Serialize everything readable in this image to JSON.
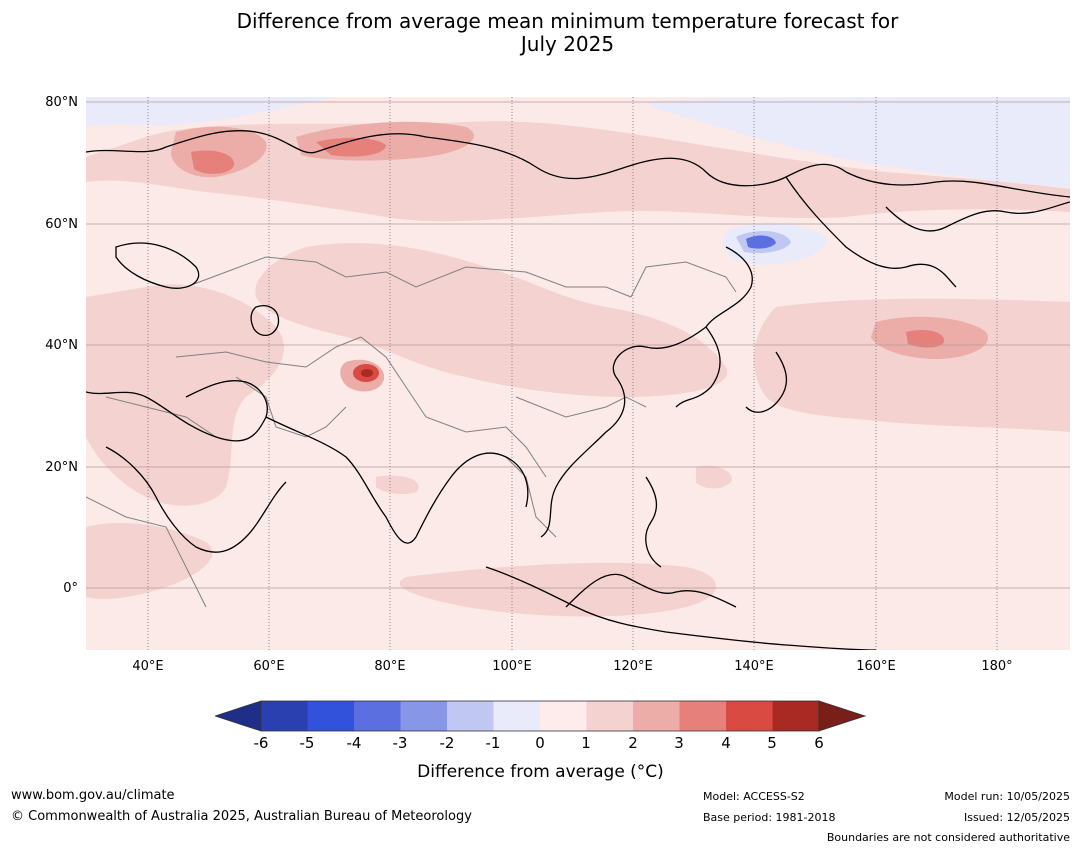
{
  "title": {
    "line1": "Difference from average mean minimum temperature forecast for",
    "line2": "July 2025"
  },
  "map": {
    "lat_labels": [
      "80°N",
      "60°N",
      "40°N",
      "20°N",
      "0°"
    ],
    "lon_labels": [
      "40°E",
      "60°E",
      "80°E",
      "100°E",
      "120°E",
      "140°E",
      "160°E",
      "180°"
    ],
    "colors": {
      "ocean_land_base": "#fbeae8",
      "anom_0_1": "#fdeceb",
      "anom_1_2": "#f4d2cf",
      "anom_2_3": "#ecaca8",
      "anom_3_4": "#e5807b",
      "anom_4_5": "#d94a42",
      "anom_5_6": "#a82a22",
      "anom_m1_0": "#e9ebfb",
      "anom_m2_m1": "#c0c7f3",
      "anom_m3_m2": "#8896e8",
      "anom_m4_m3": "#5b6fe0",
      "coastline": "#000000",
      "borders": "#808080"
    }
  },
  "colorbar": {
    "ticks": [
      "-6",
      "-5",
      "-4",
      "-3",
      "-2",
      "-1",
      "0",
      "1",
      "2",
      "3",
      "4",
      "5",
      "6"
    ],
    "colors": [
      "#1f2f87",
      "#2a3fb0",
      "#3352db",
      "#5b6fe0",
      "#8896e8",
      "#c0c7f3",
      "#e9ebfb",
      "#fdeceb",
      "#f4d2cf",
      "#ecaca8",
      "#e5807b",
      "#d94a42",
      "#a82a22",
      "#7a1f18"
    ],
    "label": "Difference from average (°C)"
  },
  "footer": {
    "url": "www.bom.gov.au/climate",
    "copyright": "© Commonwealth of Australia 2025, Australian Bureau of Meteorology",
    "model": "Model: ACCESS-S2",
    "base_period": "Base period: 1981-2018",
    "model_run": "Model run: 10/05/2025",
    "issued": "Issued: 12/05/2025",
    "disclaimer": "Boundaries are not considered authoritative"
  }
}
